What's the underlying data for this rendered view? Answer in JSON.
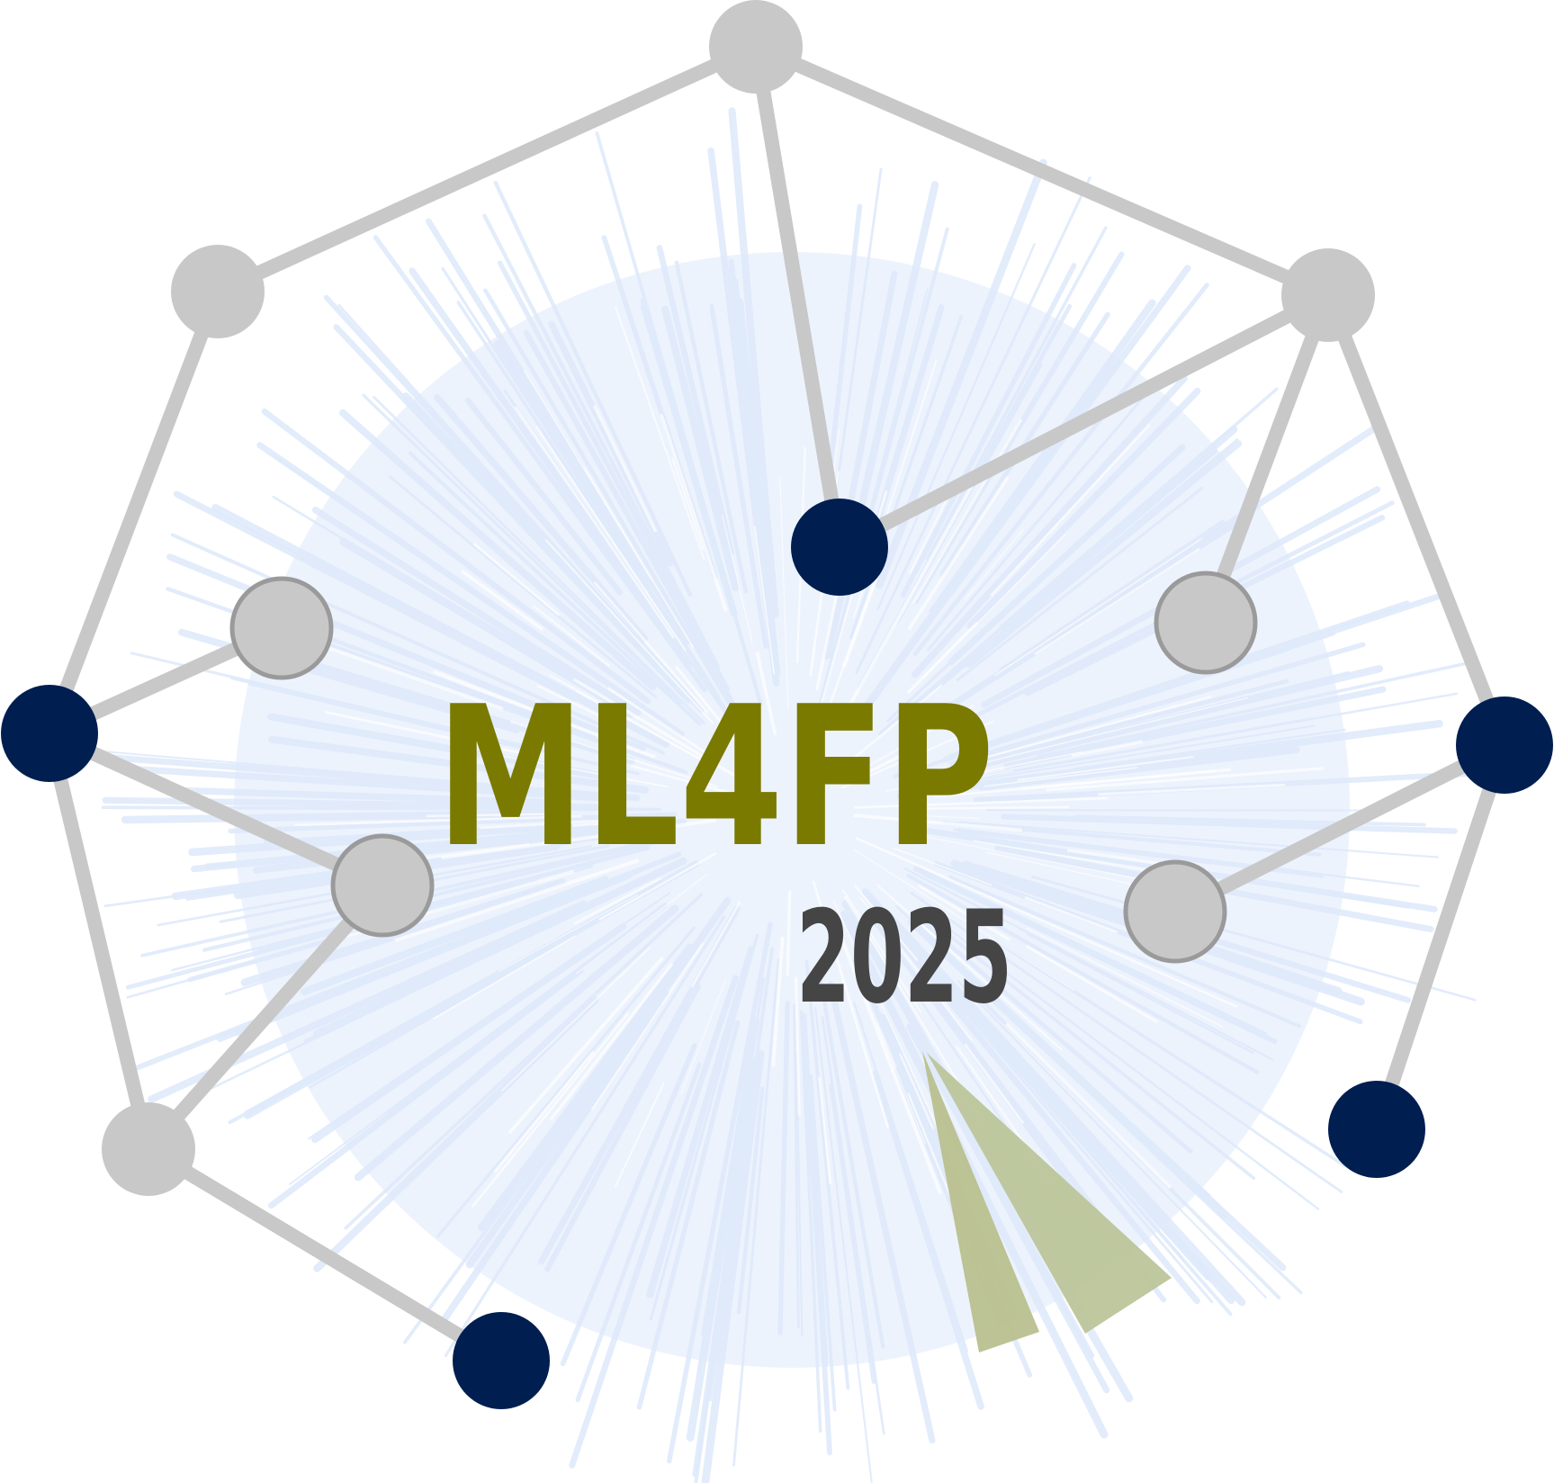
{
  "logo": {
    "title": "ML4FP",
    "year": "2025"
  },
  "colors": {
    "title_olive": "#7a7a00",
    "year_gray": "#454545",
    "edge_gray": "#c8c8c8",
    "node_gray": "#c8c8c8",
    "node_gray_outline": "#9a9a9a",
    "node_navy": "#001e50",
    "background_burst": "#dfeafb",
    "wedge_olive": "#b9c08e",
    "background": "#ffffff"
  }
}
